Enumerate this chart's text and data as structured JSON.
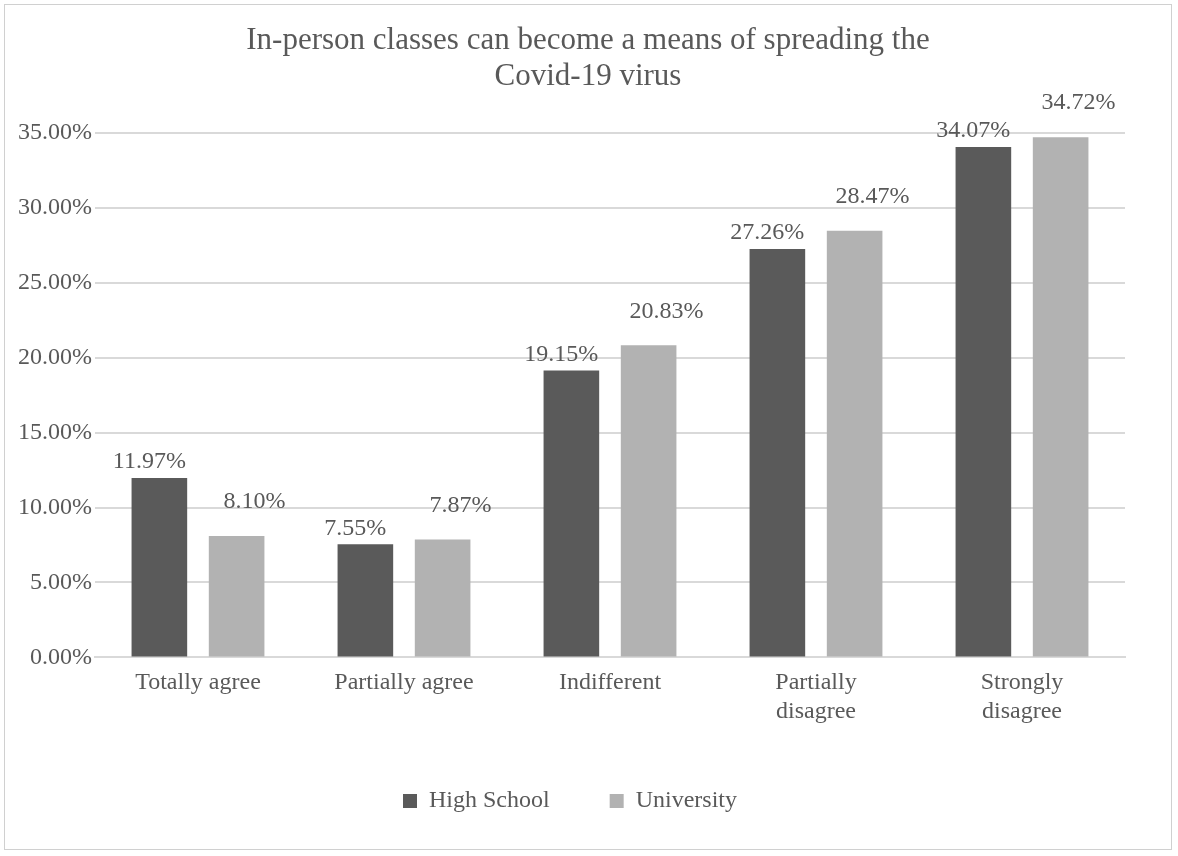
{
  "chart_data": {
    "type": "bar",
    "title": "In-person classes can become a means of spreading the Covid-19 virus",
    "categories": [
      "Totally agree",
      "Partially agree",
      "Indifferent",
      "Partially disagree",
      "Strongly disagree"
    ],
    "series": [
      {
        "name": "High School",
        "color": "#5a5a5a",
        "values": [
          11.97,
          7.55,
          19.15,
          27.26,
          34.07
        ],
        "value_labels": [
          "11.97%",
          "7.55%",
          "19.15%",
          "27.26%",
          "34.07%"
        ]
      },
      {
        "name": "University",
        "color": "#b2b2b2",
        "values": [
          8.1,
          7.87,
          20.83,
          28.47,
          34.72
        ],
        "value_labels": [
          "8.10%",
          "7.87%",
          "20.83%",
          "28.47%",
          "34.72%"
        ]
      }
    ],
    "ylim": [
      0,
      35
    ],
    "yticks": [
      {
        "value": 0,
        "label": "0.00%"
      },
      {
        "value": 5,
        "label": "5.00%"
      },
      {
        "value": 10,
        "label": "10.00%"
      },
      {
        "value": 15,
        "label": "15.00%"
      },
      {
        "value": 20,
        "label": "20.00%"
      },
      {
        "value": 25,
        "label": "25.00%"
      },
      {
        "value": 30,
        "label": "30.00%"
      },
      {
        "value": 35,
        "label": "35.00%"
      }
    ],
    "grid": "y",
    "legend": "bottom"
  }
}
